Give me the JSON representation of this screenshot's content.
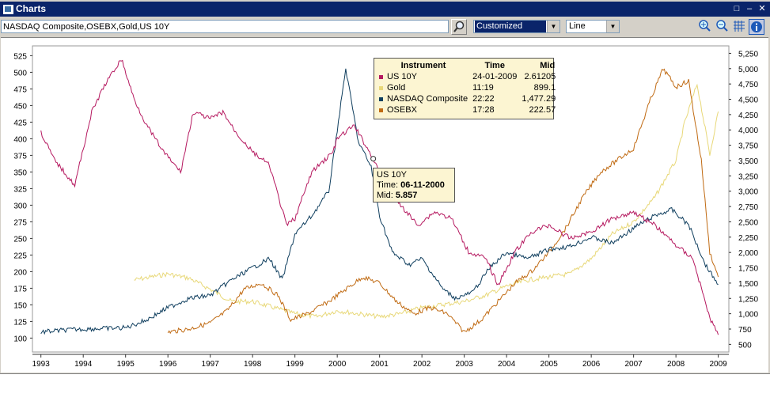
{
  "window": {
    "title": "Charts"
  },
  "toolbar": {
    "search_value": "NASDAQ Composite,OSEBX,Gold,US 10Y",
    "preset_value": "Customized",
    "type_value": "Line"
  },
  "icons": {
    "search": "search-icon",
    "zoom_in": "zoom-in-icon",
    "zoom_out": "zoom-out-icon",
    "grid": "grid-icon",
    "info": "info-icon"
  },
  "legend": {
    "headers": [
      "Instrument",
      "Time",
      "Mid"
    ],
    "rows": [
      {
        "name": "US 10Y",
        "time": "24-01-2009",
        "mid": "2.61205",
        "color": "#b5185f"
      },
      {
        "name": "Gold",
        "time": "11:19",
        "mid": "899.1",
        "color": "#e8d878"
      },
      {
        "name": "NASDAQ Composite",
        "time": "22:22",
        "mid": "1,477.29",
        "color": "#0f3e5e"
      },
      {
        "name": "OSEBX",
        "time": "17:28",
        "mid": "222.57",
        "color": "#c06a12"
      }
    ]
  },
  "tooltip": {
    "series": "US 10Y",
    "time_label": "Time:",
    "time_value": "06-11-2000",
    "mid_label": "Mid:",
    "mid_value": "5.857"
  },
  "chart_data": {
    "type": "line",
    "x_ticks": [
      "1993",
      "1994",
      "1995",
      "1996",
      "1997",
      "1998",
      "1999",
      "2000",
      "2001",
      "2002",
      "2003",
      "2004",
      "2005",
      "2006",
      "2007",
      "2008",
      "2009"
    ],
    "left_axis": {
      "ticks": [
        100,
        125,
        150,
        175,
        200,
        225,
        250,
        275,
        300,
        325,
        350,
        375,
        400,
        425,
        450,
        475,
        500,
        525
      ],
      "range": [
        85,
        535
      ]
    },
    "right_axis": {
      "ticks": [
        "500",
        "750",
        "1,000",
        "1,250",
        "1,500",
        "1,750",
        "2,000",
        "2,250",
        "2,500",
        "2,750",
        "3,000",
        "3,250",
        "3,500",
        "3,750",
        "4,000",
        "4,250",
        "4,500",
        "4,750",
        "5,000",
        "5,250"
      ],
      "range": [
        440,
        5320
      ]
    },
    "series": [
      {
        "name": "US 10Y",
        "axis": "left",
        "color": "#b5185f",
        "x": [
          1993.0,
          1993.3,
          1993.8,
          1994.2,
          1994.5,
          1994.9,
          1995.2,
          1995.5,
          1995.9,
          1996.3,
          1996.6,
          1997.0,
          1997.3,
          1997.6,
          1998.0,
          1998.4,
          1998.8,
          1999.0,
          1999.4,
          1999.9,
          2000.0,
          2000.4,
          2000.85,
          2001.2,
          2001.5,
          2001.9,
          2002.3,
          2002.7,
          2003.1,
          2003.5,
          2003.8,
          2004.2,
          2004.6,
          2005.0,
          2005.5,
          2006.0,
          2006.5,
          2007.0,
          2007.5,
          2008.0,
          2008.4,
          2008.8,
          2009.0
        ],
        "y": [
          410,
          370,
          330,
          440,
          480,
          520,
          460,
          420,
          380,
          350,
          440,
          430,
          440,
          410,
          380,
          360,
          270,
          280,
          350,
          380,
          400,
          420,
          370,
          320,
          300,
          270,
          290,
          280,
          230,
          220,
          180,
          230,
          260,
          270,
          250,
          260,
          280,
          290,
          270,
          240,
          220,
          130,
          105
        ]
      },
      {
        "name": "Gold",
        "axis": "right",
        "color": "#e8d878",
        "x": [
          1995.2,
          1995.6,
          1996.0,
          1996.5,
          1997.0,
          1997.5,
          1998.0,
          1998.5,
          1999.0,
          1999.5,
          2000.0,
          2000.5,
          2001.0,
          2001.5,
          2002.0,
          2002.5,
          2003.0,
          2003.5,
          2004.0,
          2004.5,
          2005.0,
          2005.5,
          2006.0,
          2006.5,
          2007.0,
          2007.5,
          2008.0,
          2008.2,
          2008.5,
          2008.8,
          2009.0
        ],
        "y": [
          1550,
          1600,
          1650,
          1580,
          1400,
          1200,
          1200,
          1100,
          1000,
          950,
          1050,
          1000,
          950,
          1000,
          1100,
          1150,
          1200,
          1300,
          1450,
          1550,
          1600,
          1650,
          1900,
          2300,
          2500,
          2900,
          3500,
          4100,
          4750,
          3600,
          4300
        ]
      },
      {
        "name": "NASDAQ Composite",
        "axis": "right",
        "color": "#0f3e5e",
        "x": [
          1993.0,
          1993.5,
          1994.0,
          1994.5,
          1995.0,
          1995.5,
          1996.0,
          1996.5,
          1997.0,
          1997.5,
          1998.0,
          1998.4,
          1998.7,
          1999.0,
          1999.4,
          1999.8,
          2000.2,
          2000.5,
          2000.8,
          2001.0,
          2001.3,
          2001.7,
          2002.0,
          2002.5,
          2002.8,
          2003.2,
          2003.6,
          2004.0,
          2004.5,
          2005.0,
          2005.5,
          2006.0,
          2006.5,
          2007.0,
          2007.5,
          2007.9,
          2008.3,
          2008.7,
          2009.0
        ],
        "y": [
          700,
          730,
          750,
          760,
          770,
          900,
          1100,
          1250,
          1300,
          1550,
          1750,
          1900,
          1550,
          2300,
          2600,
          3000,
          5000,
          3800,
          3400,
          2600,
          2000,
          1800,
          1900,
          1400,
          1250,
          1350,
          1750,
          2000,
          1900,
          2050,
          2100,
          2250,
          2150,
          2400,
          2600,
          2700,
          2450,
          1800,
          1477
        ]
      },
      {
        "name": "OSEBX",
        "axis": "right",
        "color": "#c06a12",
        "x": [
          1996.0,
          1996.5,
          1997.0,
          1997.4,
          1997.8,
          1998.2,
          1998.6,
          1998.9,
          1999.3,
          1999.8,
          2000.2,
          2000.6,
          2001.0,
          2001.4,
          2001.8,
          2002.2,
          2002.6,
          2003.0,
          2003.4,
          2003.8,
          2004.2,
          2004.6,
          2005.0,
          2005.4,
          2005.8,
          2006.2,
          2006.6,
          2007.0,
          2007.4,
          2007.7,
          2008.0,
          2008.3,
          2008.6,
          2008.8,
          2009.0
        ],
        "y": [
          700,
          750,
          850,
          1050,
          1400,
          1500,
          1300,
          900,
          1000,
          1200,
          1400,
          1600,
          1500,
          1200,
          1000,
          1100,
          1000,
          700,
          900,
          1200,
          1500,
          1700,
          2000,
          2400,
          2900,
          3300,
          3500,
          3700,
          4500,
          5000,
          4700,
          4800,
          3500,
          2000,
          1600
        ]
      }
    ]
  }
}
